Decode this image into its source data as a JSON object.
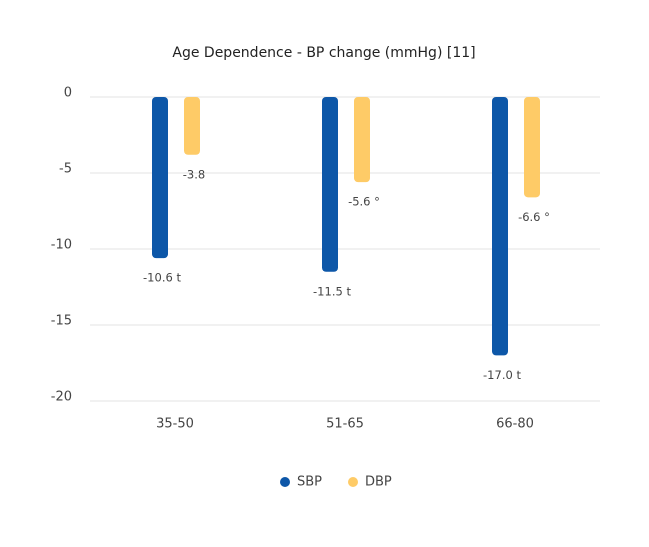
{
  "chart_data": {
    "type": "bar",
    "title": "Age Dependence - BP change (mmHg) [11]",
    "categories": [
      "35-50",
      "51-65",
      "66-80"
    ],
    "series": [
      {
        "name": "SBP",
        "color": "#0d57a8",
        "values": [
          -10.6,
          -11.5,
          -17.0
        ],
        "value_labels": [
          "-10.6 t",
          "-11.5 t",
          "-17.0 t"
        ]
      },
      {
        "name": "DBP",
        "color": "#fecb67",
        "values": [
          -3.8,
          -5.6,
          -6.6
        ],
        "value_labels": [
          "-3.8",
          "-5.6 °",
          "-6.6 °"
        ]
      }
    ],
    "ylim": [
      -20,
      0
    ],
    "yticks": [
      0,
      -5,
      -10,
      -15,
      -20
    ],
    "grid": true,
    "legend": "bottom"
  }
}
